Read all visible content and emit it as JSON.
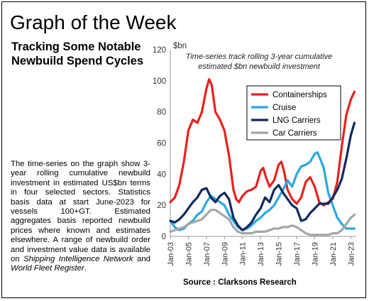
{
  "page": {
    "title": "Graph of the Week",
    "subtitle": "Tracking Some Notable Newbuild Spend Cycles",
    "body_parts": [
      "The time-series on the graph show 3-year rolling cumulative newbuild investment in estimated US$bn terms in four selected sectors. Statistics basis data at start June-2023 for vessels 100+GT. Estimated aggregates basis reported newbuild prices where known and estimates elsewhere. A range of newbuild order and investment value data is available on ",
      "Shipping Intelligence Network",
      " and ",
      "World Fleet Register",
      "."
    ],
    "source": "Source : Clarksons Research"
  },
  "chart_data": {
    "type": "line",
    "title": "",
    "ylabel": "$bn",
    "annotation": [
      "Time-series track rolling 3-year cumulative",
      "estimated $bn newbuild investment"
    ],
    "ylim": [
      0,
      120
    ],
    "yticks": [
      0,
      20,
      40,
      60,
      80,
      100,
      120
    ],
    "xlim": [
      2003,
      2023.6
    ],
    "xticks": [
      "Jan-03",
      "Jan-05",
      "Jan-07",
      "Jan-09",
      "Jan-11",
      "Jan-13",
      "Jan-15",
      "Jan-17",
      "Jan-19",
      "Jan-21",
      "Jan-23"
    ],
    "grid": false,
    "legend_position": "top-right",
    "series": [
      {
        "name": "Containerships",
        "color": "#e8211e",
        "x": [
          2003,
          2003.5,
          2004,
          2004.5,
          2005,
          2005.5,
          2006,
          2006.5,
          2007,
          2007.3,
          2007.6,
          2008,
          2008.5,
          2009,
          2009.5,
          2010,
          2010.3,
          2010.6,
          2011,
          2011.5,
          2012,
          2012.5,
          2013,
          2013.3,
          2013.6,
          2014,
          2014.5,
          2015,
          2015.3,
          2015.6,
          2016,
          2016.5,
          2017,
          2017.5,
          2018,
          2018.5,
          2019,
          2019.5,
          2020,
          2020.5,
          2021,
          2021.5,
          2022,
          2022.5,
          2023,
          2023.4
        ],
        "y": [
          22,
          25,
          33,
          48,
          68,
          75,
          73,
          80,
          95,
          101,
          97,
          80,
          75,
          68,
          52,
          30,
          24,
          22,
          26,
          29,
          30,
          32,
          42,
          44,
          38,
          32,
          36,
          46,
          48,
          42,
          30,
          24,
          21,
          25,
          35,
          38,
          32,
          22,
          20,
          22,
          24,
          35,
          58,
          78,
          88,
          93
        ]
      },
      {
        "name": "Cruise",
        "color": "#29a8e0",
        "x": [
          2003,
          2003.5,
          2004,
          2004.5,
          2005,
          2005.5,
          2006,
          2006.5,
          2007,
          2007.5,
          2008,
          2008.5,
          2009,
          2009.5,
          2010,
          2010.5,
          2011,
          2011.5,
          2012,
          2012.5,
          2013,
          2013.5,
          2014,
          2014.5,
          2015,
          2015.5,
          2016,
          2016.5,
          2017,
          2017.5,
          2018,
          2018.5,
          2019,
          2019.3,
          2019.6,
          2020,
          2020.5,
          2021,
          2021.5,
          2022,
          2022.5,
          2023,
          2023.4
        ],
        "y": [
          10,
          6,
          4,
          5,
          8,
          10,
          14,
          16,
          22,
          26,
          24,
          22,
          20,
          14,
          10,
          6,
          4,
          5,
          7,
          10,
          12,
          15,
          17,
          20,
          25,
          30,
          36,
          32,
          40,
          45,
          46,
          48,
          53,
          54,
          50,
          44,
          28,
          20,
          12,
          8,
          5,
          5,
          5
        ]
      },
      {
        "name": "LNG Carriers",
        "color": "#102a5f",
        "x": [
          2003,
          2003.5,
          2004,
          2004.5,
          2005,
          2005.5,
          2006,
          2006.5,
          2007,
          2007.5,
          2008,
          2008.5,
          2009,
          2009.5,
          2010,
          2010.5,
          2011,
          2011.5,
          2012,
          2012.5,
          2013,
          2013.5,
          2014,
          2014.5,
          2015,
          2015.5,
          2016,
          2016.5,
          2017,
          2017.5,
          2018,
          2018.5,
          2019,
          2019.5,
          2020,
          2020.5,
          2021,
          2021.5,
          2022,
          2022.5,
          2023,
          2023.4
        ],
        "y": [
          10,
          9,
          11,
          14,
          18,
          22,
          25,
          30,
          31,
          25,
          22,
          26,
          28,
          24,
          12,
          7,
          4,
          6,
          9,
          14,
          18,
          25,
          22,
          30,
          33,
          28,
          24,
          20,
          18,
          10,
          11,
          15,
          18,
          21,
          21,
          21,
          25,
          30,
          37,
          50,
          65,
          73
        ]
      },
      {
        "name": "Car Carriers",
        "color": "#a6a6a6",
        "x": [
          2003,
          2003.5,
          2004,
          2004.5,
          2005,
          2005.5,
          2006,
          2006.5,
          2007,
          2007.5,
          2008,
          2008.5,
          2009,
          2009.5,
          2010,
          2010.5,
          2011,
          2011.5,
          2012,
          2012.5,
          2013,
          2013.5,
          2014,
          2014.5,
          2015,
          2015.5,
          2016,
          2016.5,
          2017,
          2017.5,
          2018,
          2018.5,
          2019,
          2019.5,
          2020,
          2020.5,
          2021,
          2021.5,
          2022,
          2022.5,
          2023,
          2023.4
        ],
        "y": [
          3,
          4,
          5,
          6,
          8,
          9,
          10,
          11,
          14,
          17,
          17,
          15,
          13,
          11,
          6,
          3,
          2,
          2,
          2,
          3,
          3,
          3,
          4,
          5,
          5,
          6,
          6,
          7,
          6,
          4,
          2,
          1,
          1,
          1,
          1,
          1,
          2,
          2,
          4,
          8,
          12,
          14
        ]
      }
    ]
  }
}
